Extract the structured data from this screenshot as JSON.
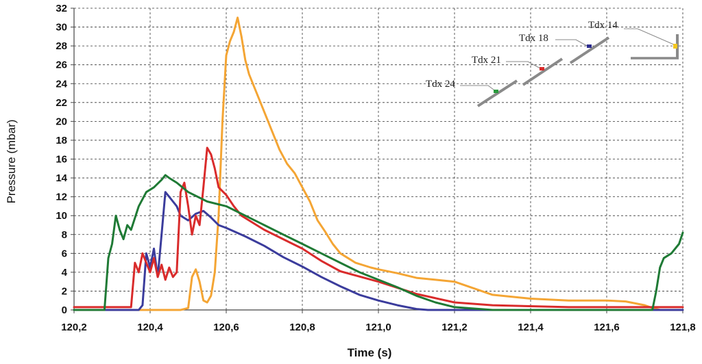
{
  "chart_data": {
    "type": "line",
    "title": "",
    "xlabel": "Time (s)",
    "ylabel": "Pressure (mbar)",
    "xlim": [
      120.2,
      121.8
    ],
    "ylim": [
      0,
      32
    ],
    "x_ticks": [
      120.2,
      120.4,
      120.6,
      120.8,
      121.0,
      121.2,
      121.4,
      121.6,
      121.8
    ],
    "x_tick_labels": [
      "120,2",
      "120,4",
      "120,6",
      "120,8",
      "121,0",
      "121,2",
      "121,4",
      "121,6",
      "121,8"
    ],
    "y_ticks": [
      0,
      2,
      4,
      6,
      8,
      10,
      12,
      14,
      16,
      18,
      20,
      22,
      24,
      26,
      28,
      30,
      32
    ],
    "y_tick_labels": [
      "0",
      "2",
      "4",
      "6",
      "8",
      "10",
      "12",
      "14",
      "16",
      "18",
      "20",
      "22",
      "24",
      "26",
      "28",
      "30",
      "32"
    ],
    "grid": true,
    "series": [
      {
        "name": "Tdx 14",
        "color": "#f4a534",
        "x": [
          120.2,
          120.48,
          120.5,
          120.51,
          120.52,
          120.53,
          120.54,
          120.55,
          120.56,
          120.57,
          120.58,
          120.59,
          120.6,
          120.61,
          120.62,
          120.63,
          120.64,
          120.65,
          120.66,
          120.68,
          120.7,
          120.72,
          120.74,
          120.76,
          120.78,
          120.8,
          120.82,
          120.84,
          120.86,
          120.88,
          120.9,
          120.94,
          120.98,
          121.0,
          121.05,
          121.1,
          121.15,
          121.2,
          121.25,
          121.3,
          121.4,
          121.5,
          121.6,
          121.65,
          121.7,
          121.72,
          121.74
        ],
        "y": [
          0,
          0,
          0.2,
          3.5,
          4.3,
          3.0,
          1.0,
          0.8,
          1.5,
          4.0,
          10,
          20,
          27,
          28.5,
          29.5,
          31.0,
          29.0,
          26.5,
          25,
          23,
          21,
          19,
          17,
          15.5,
          14.5,
          13,
          11.5,
          9.5,
          8.3,
          7.0,
          6.0,
          5.0,
          4.5,
          4.3,
          3.9,
          3.4,
          3.2,
          3.0,
          2.3,
          1.6,
          1.2,
          1.0,
          1.0,
          0.9,
          0.5,
          0.2,
          0
        ]
      },
      {
        "name": "Tdx 18",
        "color": "#3b3c9c",
        "x": [
          120.2,
          120.37,
          120.38,
          120.39,
          120.4,
          120.41,
          120.42,
          120.43,
          120.44,
          120.45,
          120.46,
          120.47,
          120.48,
          120.5,
          120.52,
          120.54,
          120.56,
          120.58,
          120.6,
          120.65,
          120.7,
          120.75,
          120.8,
          120.85,
          120.9,
          120.95,
          121.0,
          121.05,
          121.1,
          121.13,
          121.2,
          121.8
        ],
        "y": [
          0,
          0,
          0.5,
          6.0,
          4.5,
          6.5,
          3.5,
          8.0,
          12.5,
          12.0,
          11.5,
          11.0,
          10.0,
          9.5,
          10.2,
          10.5,
          9.8,
          9.0,
          8.7,
          7.8,
          6.8,
          5.6,
          4.6,
          3.5,
          2.5,
          1.6,
          1.0,
          0.5,
          0.1,
          0,
          0,
          0
        ]
      },
      {
        "name": "Tdx 21",
        "color": "#d92b2b",
        "x": [
          120.2,
          120.35,
          120.36,
          120.37,
          120.38,
          120.39,
          120.4,
          120.41,
          120.42,
          120.43,
          120.44,
          120.45,
          120.46,
          120.47,
          120.48,
          120.49,
          120.5,
          120.51,
          120.52,
          120.53,
          120.54,
          120.55,
          120.56,
          120.57,
          120.58,
          120.6,
          120.62,
          120.64,
          120.66,
          120.7,
          120.75,
          120.8,
          120.85,
          120.9,
          121.0,
          121.1,
          121.2,
          121.3,
          121.5,
          121.73,
          121.8
        ],
        "y": [
          0.3,
          0.3,
          5.0,
          4.0,
          6.0,
          5.0,
          4.0,
          5.5,
          3.5,
          4.8,
          3.2,
          4.5,
          3.5,
          4.0,
          12.5,
          13.5,
          11.0,
          8.0,
          10.0,
          9.0,
          13,
          17.2,
          16.5,
          15,
          13,
          12.2,
          11.0,
          10.0,
          9.5,
          8.5,
          7.5,
          6.5,
          5.2,
          4.1,
          3.0,
          1.7,
          0.8,
          0.5,
          0.3,
          0.3,
          0.3
        ]
      },
      {
        "name": "Tdx 24",
        "color": "#1f7a35",
        "x": [
          120.2,
          120.28,
          120.29,
          120.3,
          120.31,
          120.32,
          120.33,
          120.34,
          120.35,
          120.37,
          120.39,
          120.41,
          120.43,
          120.44,
          120.45,
          120.47,
          120.5,
          120.55,
          120.6,
          120.65,
          120.7,
          120.75,
          120.8,
          120.85,
          120.9,
          120.95,
          121.0,
          121.05,
          121.1,
          121.15,
          121.2,
          121.3,
          121.72,
          121.73,
          121.74,
          121.75,
          121.77,
          121.79,
          121.8
        ],
        "y": [
          0,
          0,
          5.5,
          7.0,
          10.0,
          8.5,
          7.5,
          9.0,
          8.5,
          11.0,
          12.5,
          13.0,
          13.8,
          14.3,
          14.0,
          13.5,
          12.5,
          11.5,
          11.0,
          10.0,
          9.0,
          8.0,
          7.0,
          6.0,
          5.0,
          4.0,
          3.2,
          2.4,
          1.5,
          0.8,
          0.3,
          0,
          0,
          2.0,
          4.5,
          5.5,
          6.0,
          7.0,
          8.2
        ]
      }
    ],
    "inset": {
      "labels": [
        "Tdx 14",
        "Tdx 18",
        "Tdx 21",
        "Tdx 24"
      ],
      "marker_colors": [
        "#f3c61f",
        "#2c2c8e",
        "#d92b2b",
        "#2a9a3c"
      ]
    }
  }
}
